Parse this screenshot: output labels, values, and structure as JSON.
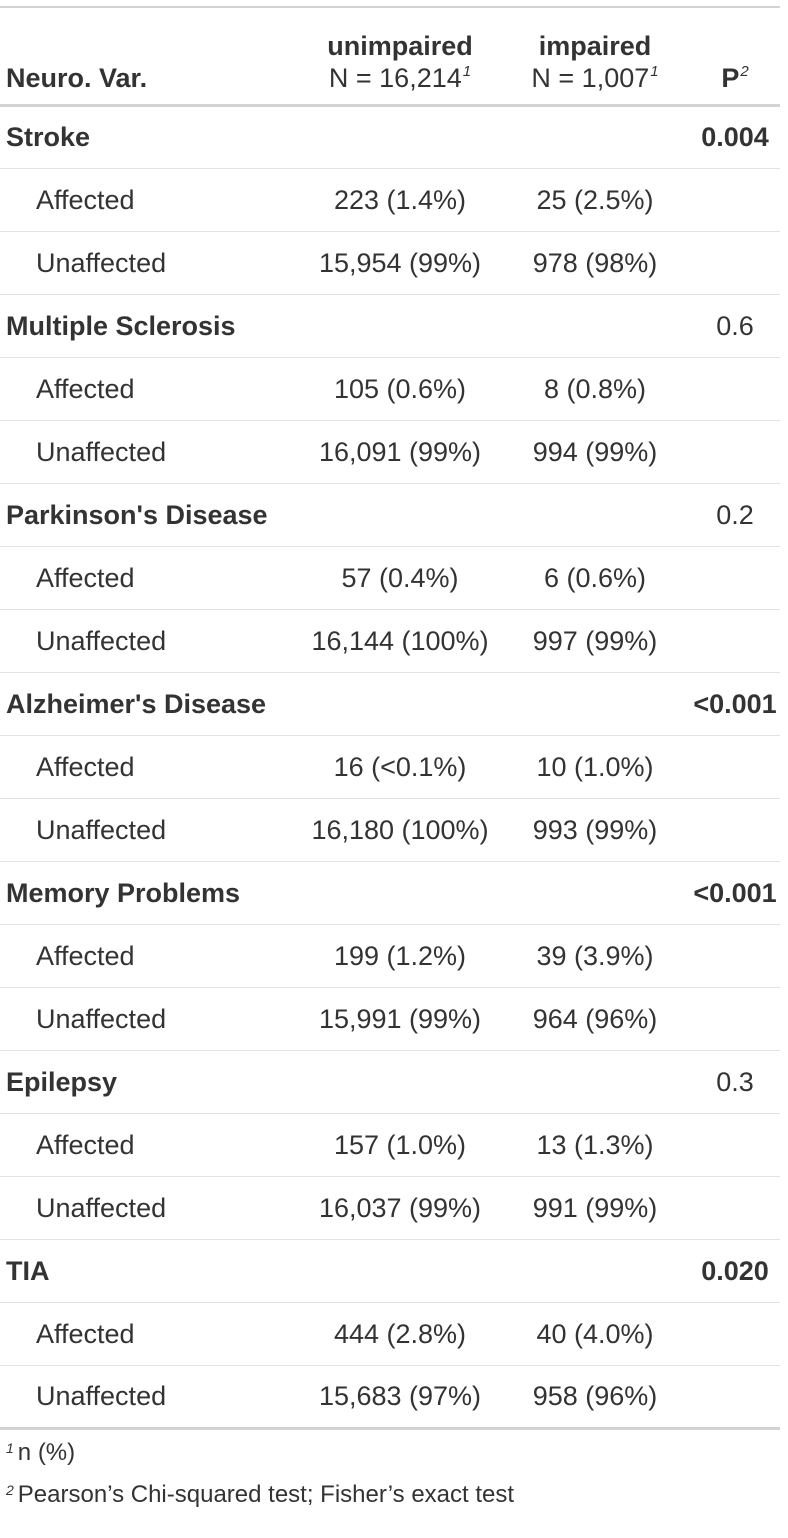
{
  "header": {
    "label": "Neuro. Var.",
    "columns": [
      {
        "name": "unimpaired",
        "n": "N = 16,214",
        "mark": "1"
      },
      {
        "name": "impaired",
        "n": "N = 1,007",
        "mark": "1"
      }
    ],
    "p_label": "P",
    "p_mark": "2"
  },
  "groups": [
    {
      "label": "Stroke",
      "p": "0.004",
      "significant": true,
      "rows": [
        {
          "label": "Affected",
          "unimpaired": "223 (1.4%)",
          "impaired": "25 (2.5%)"
        },
        {
          "label": "Unaffected",
          "unimpaired": "15,954 (99%)",
          "impaired": "978 (98%)"
        }
      ]
    },
    {
      "label": "Multiple Sclerosis",
      "p": "0.6",
      "significant": false,
      "rows": [
        {
          "label": "Affected",
          "unimpaired": "105 (0.6%)",
          "impaired": "8 (0.8%)"
        },
        {
          "label": "Unaffected",
          "unimpaired": "16,091 (99%)",
          "impaired": "994 (99%)"
        }
      ]
    },
    {
      "label": "Parkinson's Disease",
      "p": "0.2",
      "significant": false,
      "rows": [
        {
          "label": "Affected",
          "unimpaired": "57 (0.4%)",
          "impaired": "6 (0.6%)"
        },
        {
          "label": "Unaffected",
          "unimpaired": "16,144 (100%)",
          "impaired": "997 (99%)"
        }
      ]
    },
    {
      "label": "Alzheimer's Disease",
      "p": "<0.001",
      "significant": true,
      "rows": [
        {
          "label": "Affected",
          "unimpaired": "16 (<0.1%)",
          "impaired": "10 (1.0%)"
        },
        {
          "label": "Unaffected",
          "unimpaired": "16,180 (100%)",
          "impaired": "993 (99%)"
        }
      ]
    },
    {
      "label": "Memory Problems",
      "p": "<0.001",
      "significant": true,
      "rows": [
        {
          "label": "Affected",
          "unimpaired": "199 (1.2%)",
          "impaired": "39 (3.9%)"
        },
        {
          "label": "Unaffected",
          "unimpaired": "15,991 (99%)",
          "impaired": "964 (96%)"
        }
      ]
    },
    {
      "label": "Epilepsy",
      "p": "0.3",
      "significant": false,
      "rows": [
        {
          "label": "Affected",
          "unimpaired": "157 (1.0%)",
          "impaired": "13 (1.3%)"
        },
        {
          "label": "Unaffected",
          "unimpaired": "16,037 (99%)",
          "impaired": "991 (99%)"
        }
      ]
    },
    {
      "label": "TIA",
      "p": "0.020",
      "significant": true,
      "rows": [
        {
          "label": "Affected",
          "unimpaired": "444 (2.8%)",
          "impaired": "40 (4.0%)"
        },
        {
          "label": "Unaffected",
          "unimpaired": "15,683 (97%)",
          "impaired": "958 (96%)"
        }
      ]
    }
  ],
  "footnotes": [
    {
      "mark": "1",
      "text": "n (%)"
    },
    {
      "mark": "2",
      "text": "Pearson’s Chi-squared test; Fisher’s exact test"
    }
  ]
}
